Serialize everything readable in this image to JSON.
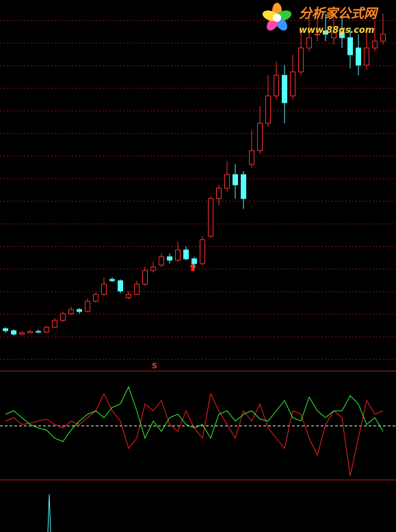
{
  "logo": {
    "title": "分析家公式网",
    "url": "www.88gs.com"
  },
  "chart_data": [
    {
      "type": "candlestick",
      "up_color": "#ff3232",
      "down_color": "#54ffff",
      "ylim": [
        0,
        104
      ],
      "open": [
        8,
        7.4,
        6.4,
        6.8,
        7.2,
        7,
        8.4,
        10.4,
        12.4,
        13.6,
        13,
        16,
        18,
        22.4,
        22,
        17,
        18,
        21,
        25,
        26.6,
        29,
        28,
        31,
        28.4,
        27,
        35,
        46,
        49,
        53,
        53,
        56,
        60,
        68,
        76,
        82,
        76,
        83,
        90,
        94,
        95,
        93,
        94.4,
        93,
        90,
        85,
        90,
        92
      ],
      "close": [
        7.4,
        6.4,
        6.8,
        7.2,
        7,
        8.4,
        10.4,
        12.4,
        13.6,
        13,
        16,
        18,
        21,
        22,
        19,
        18,
        21,
        25,
        26,
        29,
        28,
        31,
        28.4,
        27,
        34,
        46,
        49,
        53,
        50,
        46,
        60,
        68,
        76,
        82,
        74,
        83,
        90,
        93,
        94,
        94,
        94.4,
        93,
        88,
        85,
        90,
        92,
        94
      ],
      "high": [
        8.4,
        7.8,
        7.2,
        7.6,
        7.8,
        8.8,
        11,
        13,
        14.4,
        14,
        16.8,
        18.6,
        23,
        23,
        22.4,
        19,
        22,
        26,
        27.6,
        30,
        30,
        33.4,
        32,
        29,
        35,
        46.6,
        50,
        57,
        56,
        54,
        66,
        73,
        82,
        86,
        85,
        88,
        96,
        100,
        100,
        100,
        100,
        99,
        96,
        94,
        96,
        98,
        100
      ],
      "low": [
        6.8,
        6,
        6,
        6.6,
        6.6,
        6.8,
        8.2,
        10,
        12,
        12.4,
        12.8,
        15.6,
        17.6,
        21.6,
        18.4,
        16.6,
        17.8,
        20.6,
        24.4,
        26,
        27,
        27.6,
        28,
        25.6,
        26.6,
        34.6,
        44,
        48,
        46,
        43,
        55,
        59,
        67,
        75,
        68,
        75,
        82,
        89,
        92,
        92,
        91,
        90,
        84,
        82,
        83.6,
        89,
        91
      ]
    },
    {
      "type": "line",
      "signal_label": "S",
      "ylim": [
        -80,
        80
      ],
      "zero_line": true,
      "series": [
        {
          "color": "#ff2020",
          "values": [
            7,
            12,
            2,
            4,
            7,
            10,
            2,
            -3,
            7,
            2,
            12,
            22,
            47,
            22,
            7,
            -33,
            -18,
            32,
            22,
            37,
            2,
            -8,
            22,
            -3,
            -18,
            47,
            22,
            2,
            -18,
            22,
            7,
            32,
            -3,
            -18,
            -33,
            22,
            17,
            -18,
            -43,
            2,
            22,
            12,
            -73,
            -18,
            37,
            17,
            22
          ]
        },
        {
          "color": "#33ff33",
          "values": [
            17,
            22,
            12,
            2,
            -3,
            -6,
            -18,
            -23,
            -6,
            7,
            17,
            22,
            12,
            27,
            32,
            57,
            22,
            -18,
            7,
            -8,
            12,
            17,
            2,
            -3,
            2,
            -18,
            17,
            22,
            7,
            17,
            22,
            10,
            7,
            22,
            37,
            12,
            7,
            42,
            22,
            12,
            22,
            22,
            44,
            32,
            2,
            12,
            -8
          ]
        }
      ]
    }
  ]
}
